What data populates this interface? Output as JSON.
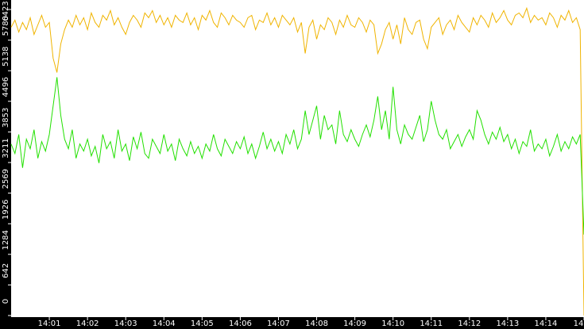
{
  "chart_data": {
    "type": "line",
    "xlim": [
      0,
      150
    ],
    "xticks": [
      {
        "value": 10,
        "label": "14:01"
      },
      {
        "value": 20,
        "label": "14:02"
      },
      {
        "value": 30,
        "label": "14:03"
      },
      {
        "value": 40,
        "label": "14:04"
      },
      {
        "value": 50,
        "label": "14:05"
      },
      {
        "value": 60,
        "label": "14:06"
      },
      {
        "value": 70,
        "label": "14:07"
      },
      {
        "value": 80,
        "label": "14:08"
      },
      {
        "value": 90,
        "label": "14:09"
      },
      {
        "value": 100,
        "label": "14:10"
      },
      {
        "value": 110,
        "label": "14:11"
      },
      {
        "value": 120,
        "label": "14:12"
      },
      {
        "value": 130,
        "label": "14:13"
      },
      {
        "value": 140,
        "label": "14:14"
      },
      {
        "value": 150,
        "label": "14"
      }
    ],
    "ylim": [
      0,
      6622
    ],
    "yticks": [
      0,
      642,
      1284,
      1926,
      2569,
      3211,
      3853,
      4496,
      5138,
      5780,
      6423
    ],
    "series": [
      {
        "color": "#f0b400",
        "values": [
          6050,
          6200,
          5950,
          6150,
          6000,
          6250,
          5900,
          6100,
          6300,
          6050,
          6150,
          5400,
          5100,
          5700,
          6000,
          6200,
          6050,
          6300,
          6100,
          6250,
          6000,
          6350,
          6150,
          6050,
          6300,
          6200,
          6400,
          6100,
          6250,
          6050,
          5900,
          6150,
          6300,
          6200,
          6050,
          6350,
          6250,
          6400,
          6150,
          6300,
          6100,
          6250,
          6050,
          6300,
          6200,
          6150,
          6350,
          6100,
          6250,
          6000,
          6300,
          6200,
          6400,
          6150,
          6050,
          6350,
          6250,
          6100,
          6300,
          6200,
          6150,
          6050,
          6250,
          6300,
          6000,
          6200,
          6150,
          6350,
          6100,
          6250,
          6050,
          6300,
          6200,
          6100,
          6250,
          5950,
          6150,
          5500,
          6050,
          6200,
          5800,
          6100,
          6000,
          6250,
          6150,
          5900,
          6200,
          6050,
          6300,
          6100,
          6050,
          6250,
          6150,
          5950,
          6200,
          6100,
          5500,
          5700,
          6000,
          6150,
          5800,
          6100,
          5700,
          6250,
          6000,
          5900,
          6150,
          6200,
          5800,
          5600,
          6050,
          6150,
          6250,
          5900,
          6100,
          6200,
          6000,
          6300,
          6150,
          6050,
          5950,
          6250,
          6100,
          6300,
          6200,
          6050,
          6350,
          6150,
          6250,
          6400,
          6200,
          6100,
          6300,
          6350,
          6250,
          6450,
          6150,
          6300,
          6200,
          6250,
          6100,
          6350,
          6250,
          6050,
          6300,
          6200,
          6400,
          6150,
          6250,
          6000,
          0
        ]
      },
      {
        "color": "#22e000",
        "values": [
          3600,
          3400,
          3800,
          3100,
          3700,
          3500,
          3900,
          3300,
          3650,
          3450,
          3800,
          4400,
          5000,
          4200,
          3700,
          3500,
          3900,
          3300,
          3600,
          3450,
          3700,
          3350,
          3550,
          3200,
          3800,
          3500,
          3650,
          3300,
          3900,
          3450,
          3600,
          3250,
          3750,
          3500,
          3850,
          3400,
          3300,
          3700,
          3550,
          3400,
          3800,
          3450,
          3600,
          3250,
          3700,
          3500,
          3350,
          3650,
          3400,
          3550,
          3300,
          3600,
          3450,
          3800,
          3500,
          3350,
          3700,
          3550,
          3400,
          3650,
          3500,
          3750,
          3400,
          3600,
          3300,
          3550,
          3850,
          3500,
          3700,
          3450,
          3650,
          3400,
          3800,
          3600,
          3900,
          3500,
          3700,
          4300,
          3800,
          4100,
          4400,
          3700,
          4200,
          3900,
          4000,
          3600,
          4300,
          3800,
          3650,
          3900,
          3700,
          3550,
          3800,
          4000,
          3750,
          4100,
          4600,
          3900,
          4300,
          3700,
          4800,
          3900,
          3600,
          4000,
          3800,
          3700,
          3950,
          4200,
          3650,
          3900,
          4500,
          4100,
          3800,
          3700,
          3900,
          3500,
          3650,
          3800,
          3550,
          3750,
          3900,
          3700,
          4300,
          4100,
          3800,
          3600,
          3850,
          3700,
          3950,
          3650,
          3800,
          3500,
          3700,
          3400,
          3650,
          3550,
          3900,
          3450,
          3600,
          3500,
          3700,
          3350,
          3550,
          3800,
          3450,
          3650,
          3500,
          3750,
          3600,
          3800,
          1700
        ]
      }
    ]
  }
}
